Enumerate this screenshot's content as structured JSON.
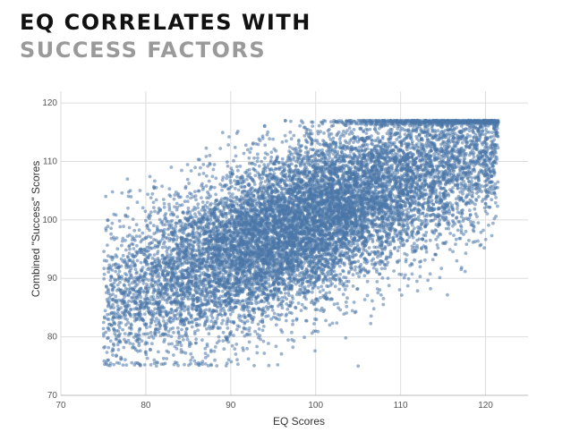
{
  "header": {
    "title_line1": "EQ CORRELATES WITH",
    "title_line2": "SUCCESS FACTORS"
  },
  "chart_data": {
    "type": "scatter",
    "title": "EQ CORRELATES WITH SUCCESS FACTORS",
    "xlabel": "EQ Scores",
    "ylabel": "Combined \"Success\" Scores",
    "xlim": [
      70,
      125
    ],
    "ylim": [
      70,
      122
    ],
    "x_ticks": [
      70,
      80,
      90,
      100,
      110,
      120
    ],
    "x_tick_labels": [
      "70",
      "80",
      "90",
      "100",
      "110",
      "120"
    ],
    "y_ticks": [
      70,
      80,
      90,
      100,
      110,
      120
    ],
    "y_tick_labels": [
      "70",
      "80",
      "90",
      "100",
      "110",
      "120"
    ],
    "grid": true,
    "point_color": "#4a76a8",
    "point_opacity": 0.55,
    "x_range": [
      75,
      121.5
    ],
    "y_range": [
      75,
      117
    ],
    "approx_points": 12000,
    "trend": {
      "slope": 0.6,
      "intercept": 40.5
    },
    "ceiling_y": 117,
    "points": [
      [
        75.5,
        76
      ],
      [
        76,
        82
      ],
      [
        77,
        88
      ],
      [
        78,
        93
      ],
      [
        80,
        97
      ],
      [
        79,
        80
      ],
      [
        82,
        85
      ],
      [
        84,
        90
      ],
      [
        85,
        100
      ],
      [
        87,
        78
      ],
      [
        88,
        95
      ],
      [
        90,
        104
      ],
      [
        91,
        88
      ],
      [
        92,
        112
      ],
      [
        93,
        98
      ],
      [
        95,
        106
      ],
      [
        96,
        91
      ],
      [
        97,
        115
      ],
      [
        98,
        102
      ],
      [
        100,
        108
      ],
      [
        101,
        94
      ],
      [
        102,
        112
      ],
      [
        103,
        100
      ],
      [
        105,
        110
      ],
      [
        106,
        98
      ],
      [
        107,
        116
      ],
      [
        108,
        105
      ],
      [
        110,
        112
      ],
      [
        111,
        102
      ],
      [
        112,
        117
      ],
      [
        113,
        108
      ],
      [
        115,
        113
      ],
      [
        116,
        105
      ],
      [
        118,
        117
      ],
      [
        119,
        110
      ],
      [
        120,
        114
      ],
      [
        121,
        117
      ],
      [
        100,
        81
      ],
      [
        105,
        75
      ],
      [
        94,
        116
      ],
      [
        83,
        109
      ],
      [
        79,
        103
      ]
    ]
  }
}
